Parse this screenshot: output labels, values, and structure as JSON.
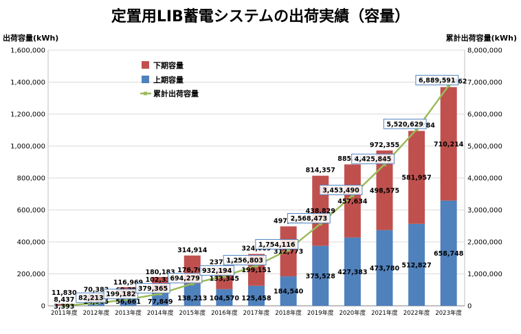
{
  "chart_data": {
    "type": "bar",
    "title": "定置用LIB蓄電システムの出荷実績（容量）",
    "ylabel_left": "出荷容量(kWh)",
    "ylabel_right": "累計出荷容量(kWh)",
    "ylim_left": [
      0,
      1600000
    ],
    "ylim_right": [
      0,
      8000000
    ],
    "yticks_left": [
      "0",
      "200,000",
      "400,000",
      "600,000",
      "800,000",
      "1,000,000",
      "1,200,000",
      "1,400,000",
      "1,600,000"
    ],
    "yticks_right": [
      "0",
      "1,000,000",
      "2,000,000",
      "3,000,000",
      "4,000,000",
      "5,000,000",
      "6,000,000",
      "7,000,000",
      "8,000,000"
    ],
    "categories": [
      "2011年度",
      "2012年度",
      "2013年度",
      "2014年度",
      "2015年度",
      "2016年度",
      "2017年度",
      "2018年度",
      "2019年度",
      "2020年度",
      "2021年度",
      "2022年度",
      "2023年度"
    ],
    "legend": [
      "下期容量",
      "上期容量",
      "累計出荷容量"
    ],
    "colors": {
      "lower_half": "#c0504d",
      "upper_half": "#4f81bd",
      "cumulative": "#9bbb59",
      "box": "#4f81bd"
    },
    "series": [
      {
        "name": "上期容量",
        "values": [
          3393,
          24965,
          56661,
          77849,
          138213,
          104570,
          125458,
          184540,
          375528,
          427383,
          473780,
          512827,
          658748
        ],
        "labels": [
          "3,393",
          "24,965",
          "56,661",
          "77,849",
          "138,213",
          "104,570",
          "125,458",
          "184,540",
          "375,528",
          "427,383",
          "473,780",
          "512,827",
          "658,748"
        ]
      },
      {
        "name": "下期容量",
        "values": [
          8437,
          45418,
          60308,
          102334,
          176701,
          133345,
          199151,
          312773,
          438829,
          457634,
          498575,
          581957,
          710214
        ],
        "labels": [
          "8,437",
          "45,418",
          "60,308",
          "102,334",
          "176,701",
          "133,345",
          "199,151",
          "312,773",
          "438,829",
          "457,634",
          "498,575",
          "581,957",
          "710,214"
        ]
      },
      {
        "name": "合計",
        "values": [
          11830,
          70383,
          116969,
          180183,
          314914,
          237915,
          324609,
          497313,
          814357,
          885017,
          972355,
          1094784,
          1368962
        ],
        "labels": [
          "11,830",
          "70,383",
          "116,969",
          "180,183",
          "314,914",
          "237,915",
          "324,609",
          "497,313",
          "814,357",
          "885,017",
          "972,355",
          "1,094,784",
          "1,368,962"
        ]
      },
      {
        "name": "累計出荷容量",
        "values": [
          11830,
          82213,
          199182,
          379365,
          694279,
          932194,
          1256803,
          1754116,
          2568473,
          3453490,
          4425845,
          5520629,
          6889591
        ],
        "labels": [
          "",
          "82,213",
          "199,182",
          "379,365",
          "694,279",
          "932,194",
          "1,256,803",
          "1,754,116",
          "2,568,473",
          "3,453,490",
          "4,425,845",
          "5,520,629",
          "6,889,591"
        ]
      }
    ]
  }
}
